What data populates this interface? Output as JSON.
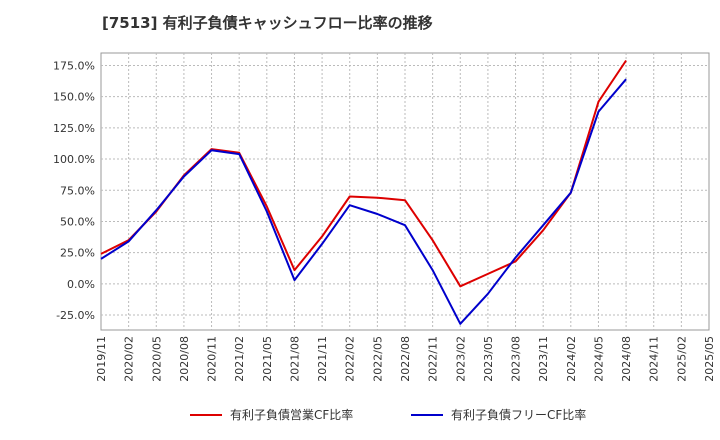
{
  "chart_data": {
    "type": "line",
    "title": "[7513]  有利子負債キャッシュフロー比率の推移",
    "x": [
      "2019/11",
      "2020/02",
      "2020/05",
      "2020/08",
      "2020/11",
      "2021/02",
      "2021/05",
      "2021/08",
      "2021/11",
      "2022/02",
      "2022/05",
      "2022/08",
      "2022/11",
      "2023/02",
      "2023/05",
      "2023/08",
      "2023/11",
      "2024/02",
      "2024/05",
      "2024/08",
      "2024/11",
      "2025/02",
      "2025/05"
    ],
    "ylim": [
      -37,
      185
    ],
    "yticks": [
      -25,
      0,
      25,
      50,
      75,
      100,
      125,
      150,
      175
    ],
    "ytick_labels": [
      "-25.0%",
      "0.0%",
      "25.0%",
      "50.0%",
      "75.0%",
      "100.0%",
      "125.0%",
      "150.0%",
      "175.0%"
    ],
    "grid": true,
    "legend_position": "bottom",
    "series": [
      {
        "name": "有利子負債営業CF比率",
        "color": "#dd0000",
        "values": [
          24,
          35,
          58,
          87,
          108,
          105,
          62,
          11,
          38,
          70,
          69,
          67,
          35,
          -2,
          8,
          18,
          43,
          73,
          146,
          179,
          null,
          null,
          null
        ]
      },
      {
        "name": "有利子負債フリーCF比率",
        "color": "#0000cc",
        "values": [
          20,
          34,
          59,
          86,
          107,
          104,
          58,
          3,
          32,
          63,
          56,
          47,
          11,
          -32,
          -8,
          21,
          47,
          73,
          138,
          164,
          null,
          null,
          null
        ]
      }
    ]
  }
}
